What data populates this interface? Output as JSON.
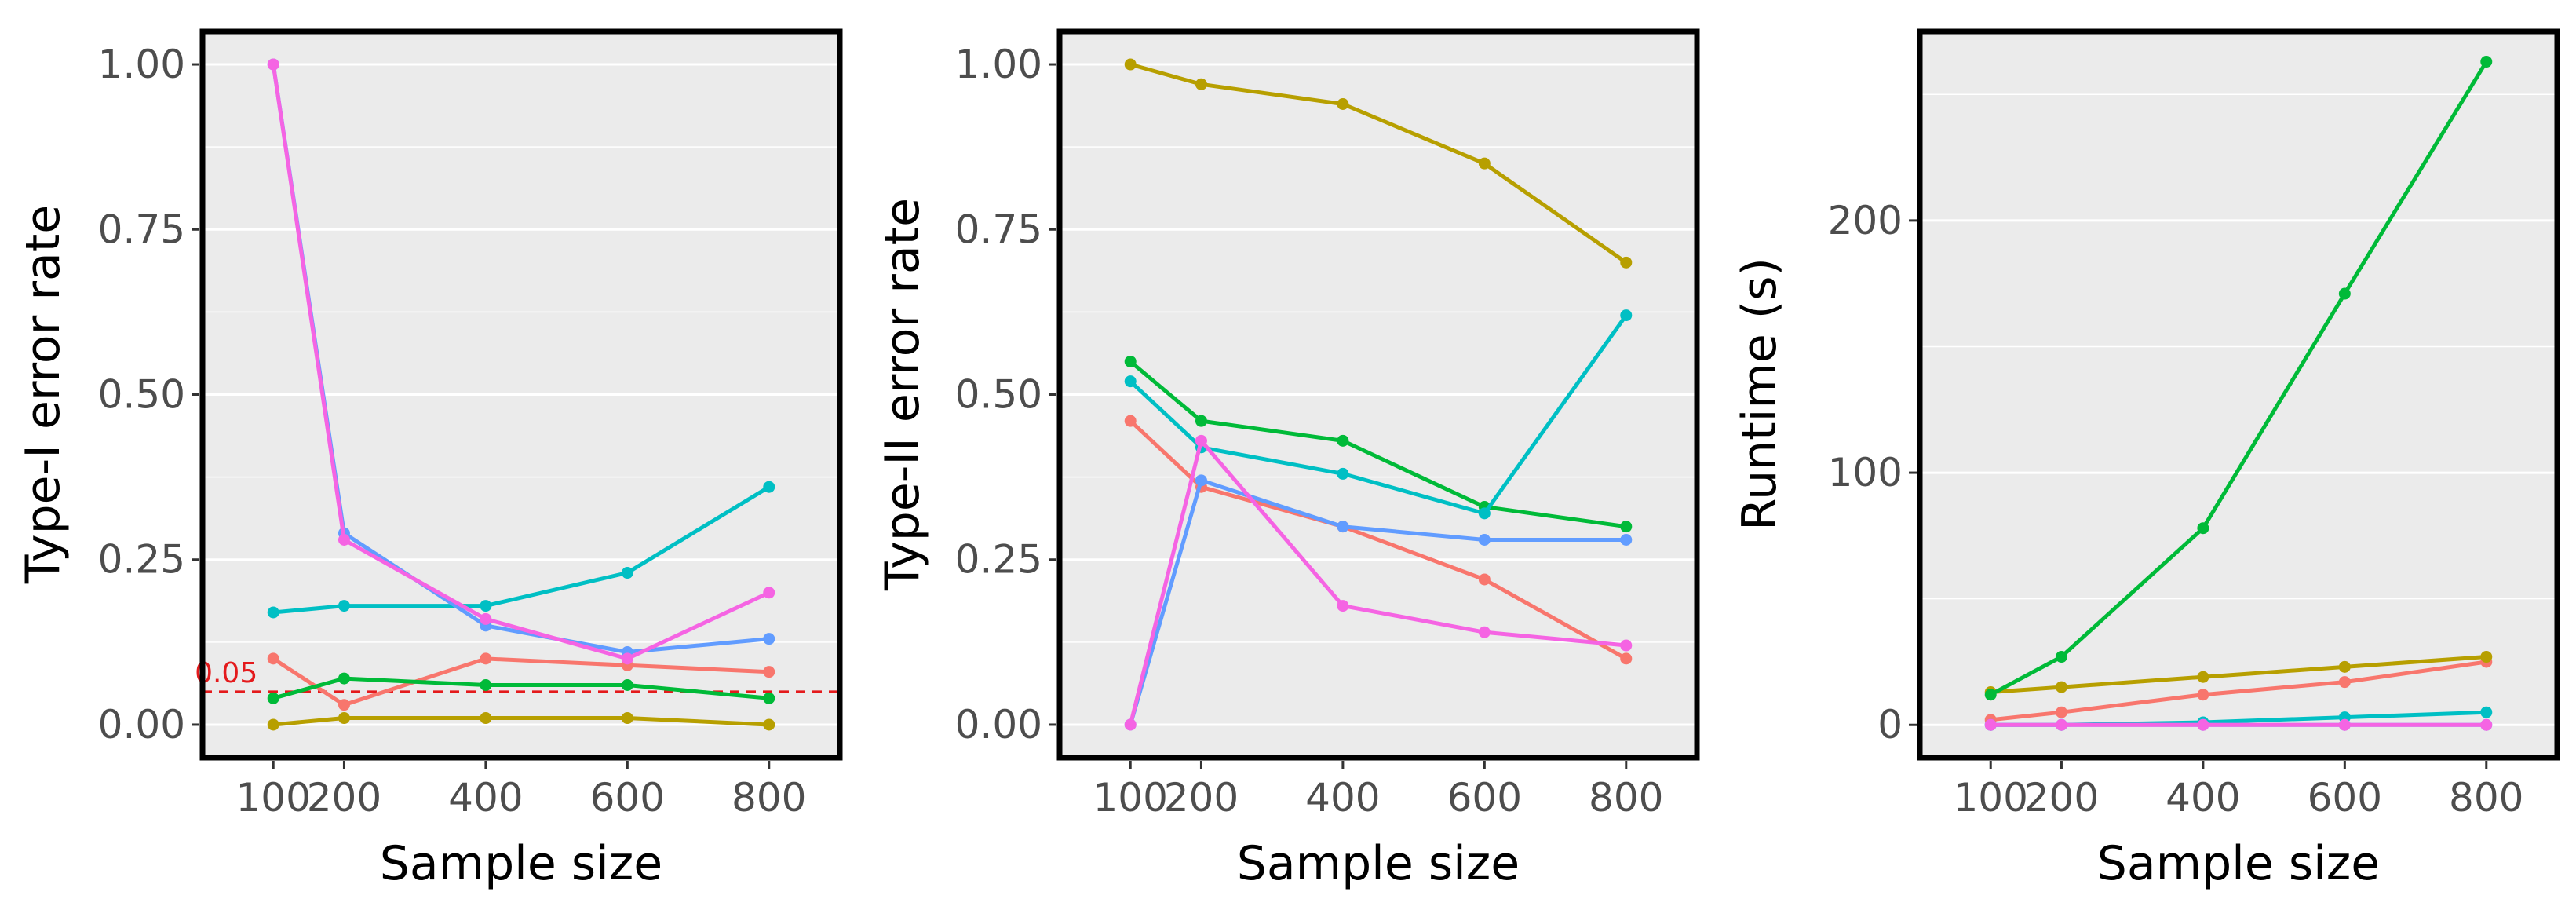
{
  "chart_data": [
    {
      "type": "line",
      "xlabel": "Sample size",
      "ylabel": "Type-I error rate",
      "x": [
        100,
        200,
        400,
        600,
        800
      ],
      "xlim": [
        0,
        900
      ],
      "ylim": [
        -0.05,
        1.05
      ],
      "yticks": [
        0.0,
        0.25,
        0.5,
        0.75,
        1.0
      ],
      "ytick_labels": [
        "0.00",
        "0.25",
        "0.50",
        "0.75",
        "1.00"
      ],
      "grid": true,
      "reference_line": {
        "y": 0.05,
        "label": "0.05",
        "color": "#e41a1c"
      },
      "series": [
        {
          "color": "#F8766D",
          "values": [
            0.1,
            0.03,
            0.1,
            0.09,
            0.08
          ]
        },
        {
          "color": "#B79F00",
          "values": [
            0.0,
            0.01,
            0.01,
            0.01,
            0.0
          ]
        },
        {
          "color": "#00BA38",
          "values": [
            0.04,
            0.07,
            0.06,
            0.06,
            0.04
          ]
        },
        {
          "color": "#00BFC4",
          "values": [
            0.17,
            0.18,
            0.18,
            0.23,
            0.36
          ]
        },
        {
          "color": "#619CFF",
          "values": [
            1.0,
            0.29,
            0.15,
            0.11,
            0.13
          ]
        },
        {
          "color": "#F564E3",
          "values": [
            1.0,
            0.28,
            0.16,
            0.1,
            0.2
          ]
        }
      ]
    },
    {
      "type": "line",
      "xlabel": "Sample size",
      "ylabel": "Type-II error rate",
      "x": [
        100,
        200,
        400,
        600,
        800
      ],
      "xlim": [
        0,
        900
      ],
      "ylim": [
        -0.05,
        1.05
      ],
      "yticks": [
        0.0,
        0.25,
        0.5,
        0.75,
        1.0
      ],
      "ytick_labels": [
        "0.00",
        "0.25",
        "0.50",
        "0.75",
        "1.00"
      ],
      "grid": true,
      "series": [
        {
          "color": "#F8766D",
          "values": [
            0.46,
            0.36,
            0.3,
            0.22,
            0.1
          ]
        },
        {
          "color": "#B79F00",
          "values": [
            1.0,
            0.97,
            0.94,
            0.85,
            0.7
          ]
        },
        {
          "color": "#00BA38",
          "values": [
            0.55,
            0.46,
            0.43,
            0.33,
            0.3
          ]
        },
        {
          "color": "#00BFC4",
          "values": [
            0.52,
            0.42,
            0.38,
            0.32,
            0.62
          ]
        },
        {
          "color": "#619CFF",
          "values": [
            0.0,
            0.37,
            0.3,
            0.28,
            0.28
          ]
        },
        {
          "color": "#F564E3",
          "values": [
            0.0,
            0.43,
            0.18,
            0.14,
            0.12
          ]
        }
      ]
    },
    {
      "type": "line",
      "xlabel": "Sample size",
      "ylabel": "Runtime (s)",
      "x": [
        100,
        200,
        400,
        600,
        800
      ],
      "xlim": [
        0,
        900
      ],
      "ylim": [
        -13,
        275
      ],
      "yticks": [
        0,
        100,
        200
      ],
      "ytick_labels": [
        "0",
        "100",
        "200"
      ],
      "grid": true,
      "series": [
        {
          "color": "#F8766D",
          "values": [
            2,
            5,
            12,
            17,
            25
          ]
        },
        {
          "color": "#B79F00",
          "values": [
            13,
            15,
            19,
            23,
            27
          ]
        },
        {
          "color": "#00BA38",
          "values": [
            12,
            27,
            78,
            171,
            263
          ]
        },
        {
          "color": "#00BFC4",
          "values": [
            0,
            0,
            1,
            3,
            5
          ]
        },
        {
          "color": "#619CFF",
          "values": [
            0,
            0,
            0,
            0,
            0
          ]
        },
        {
          "color": "#F564E3",
          "values": [
            0,
            0,
            0,
            0,
            0
          ]
        }
      ]
    }
  ]
}
